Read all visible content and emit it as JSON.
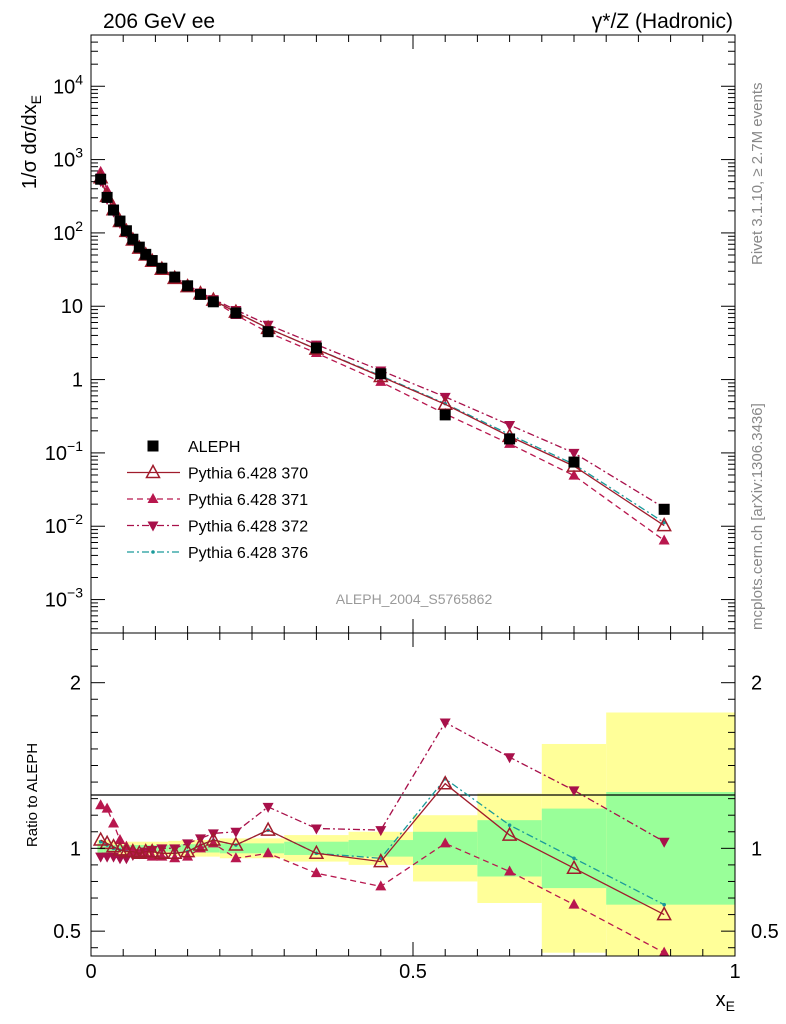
{
  "header": {
    "left_label": "206 GeV ee",
    "right_label": "γ*/Z (Hadronic)"
  },
  "side_text": {
    "rivet": "Rivet 3.1.10, ≥ 2.7M events",
    "mcplots": "mcplots.cern.ch [arXiv:1306.3436]"
  },
  "analysis_label": "ALEPH_2004_S5765862",
  "colors": {
    "data": "#000000",
    "p370": "#a01c2c",
    "p371": "#b8174e",
    "p372": "#a8104a",
    "p376": "#1a9a9a",
    "band_inner": "#99ff99",
    "band_outer": "#ffff99"
  },
  "chart_data": [
    {
      "type": "scatter",
      "panel": "main",
      "ylabel": "1/σ dσ/dx_E",
      "yscale": "log",
      "xlim": [
        0,
        1
      ],
      "ylim": [
        0.00035,
        50000
      ],
      "y_ticks": [
        "10^-3",
        "10^-2",
        "10^-1",
        "1",
        "10",
        "10^2",
        "10^3",
        "10^4"
      ],
      "x": [
        0.015,
        0.025,
        0.035,
        0.045,
        0.055,
        0.065,
        0.075,
        0.085,
        0.095,
        0.11,
        0.13,
        0.15,
        0.17,
        0.19,
        0.225,
        0.275,
        0.35,
        0.45,
        0.55,
        0.65,
        0.75,
        0.89
      ],
      "legend": {
        "placement": "lower-left"
      },
      "series": [
        {
          "name": "ALEPH",
          "marker": "square",
          "values": [
            540,
            305,
            205,
            145,
            107,
            82,
            64,
            51,
            42,
            33,
            25,
            19,
            14.5,
            11.5,
            8.1,
            4.5,
            2.7,
            1.2,
            0.33,
            0.155,
            0.075,
            0.017
          ]
        },
        {
          "name": "Pythia 6.428 370",
          "marker": "triangle-open",
          "values": [
            565,
            315,
            207,
            143,
            105,
            80,
            62,
            50,
            41,
            32,
            24,
            18.5,
            14.8,
            12.1,
            8.3,
            5.0,
            2.6,
            1.1,
            0.46,
            0.168,
            0.066,
            0.0102
          ]
        },
        {
          "name": "Pythia 6.428 371",
          "marker": "triangle-up",
          "values": [
            680,
            380,
            236,
            152,
            108,
            80,
            61,
            49,
            40,
            31,
            23.5,
            18,
            14.6,
            11.9,
            7.6,
            4.4,
            2.3,
            0.93,
            0.34,
            0.133,
            0.049,
            0.0064
          ]
        },
        {
          "name": "Pythia 6.428 372",
          "marker": "triangle-down",
          "values": [
            510,
            290,
            195,
            136,
            101,
            79,
            62,
            50,
            42,
            33,
            25,
            19.5,
            15.4,
            12.5,
            8.9,
            5.6,
            3.0,
            1.33,
            0.58,
            0.24,
            0.1,
            0.0178
          ]
        },
        {
          "name": "Pythia 6.428 376",
          "marker": "dot",
          "values": [
            560,
            312,
            206,
            144,
            106,
            81,
            63,
            50,
            41,
            32,
            24,
            18.6,
            14.8,
            12.1,
            8.3,
            5.0,
            2.6,
            1.13,
            0.47,
            0.178,
            0.07,
            0.0112
          ]
        }
      ]
    },
    {
      "type": "line",
      "panel": "ratio",
      "ylabel": "Ratio to ALEPH",
      "xlabel": "x_E",
      "xlim": [
        0,
        1
      ],
      "ylim": [
        0.35,
        2.3
      ],
      "y_ticks": [
        "0.5",
        "1",
        "2"
      ],
      "x_ticks": [
        "0",
        "0.5",
        "1"
      ],
      "x": [
        0.015,
        0.025,
        0.035,
        0.045,
        0.055,
        0.065,
        0.075,
        0.085,
        0.095,
        0.11,
        0.13,
        0.15,
        0.17,
        0.19,
        0.225,
        0.275,
        0.35,
        0.45,
        0.55,
        0.65,
        0.75,
        0.89
      ],
      "bands": {
        "edges": [
          0.01,
          0.02,
          0.03,
          0.04,
          0.05,
          0.06,
          0.07,
          0.08,
          0.09,
          0.1,
          0.12,
          0.14,
          0.16,
          0.18,
          0.2,
          0.25,
          0.3,
          0.4,
          0.5,
          0.6,
          0.7,
          0.8,
          1.0
        ],
        "inner": [
          0.03,
          0.03,
          0.02,
          0.02,
          0.02,
          0.02,
          0.02,
          0.02,
          0.02,
          0.02,
          0.02,
          0.025,
          0.025,
          0.025,
          0.03,
          0.03,
          0.04,
          0.05,
          0.1,
          0.17,
          0.24,
          0.34
        ],
        "outer": [
          0.05,
          0.05,
          0.04,
          0.04,
          0.04,
          0.04,
          0.04,
          0.04,
          0.04,
          0.04,
          0.045,
          0.05,
          0.05,
          0.05,
          0.06,
          0.06,
          0.08,
          0.1,
          0.2,
          0.33,
          0.63,
          0.82
        ]
      },
      "series": [
        {
          "name": "Pythia 6.428 370",
          "values": [
            1.05,
            1.03,
            1.01,
            0.99,
            0.98,
            0.98,
            0.97,
            0.98,
            0.98,
            0.97,
            0.97,
            0.98,
            1.02,
            1.05,
            1.02,
            1.11,
            0.97,
            0.92,
            1.39,
            1.08,
            0.88,
            0.6
          ]
        },
        {
          "name": "Pythia 6.428 371",
          "values": [
            1.26,
            1.24,
            1.15,
            1.05,
            1.01,
            0.98,
            0.96,
            0.96,
            0.95,
            0.95,
            0.94,
            0.95,
            1.0,
            1.03,
            0.94,
            0.97,
            0.85,
            0.77,
            1.03,
            0.86,
            0.66,
            0.37
          ]
        },
        {
          "name": "Pythia 6.428 372",
          "values": [
            0.95,
            0.95,
            0.95,
            0.94,
            0.94,
            0.96,
            0.97,
            0.98,
            0.99,
            1.0,
            1.0,
            1.03,
            1.06,
            1.09,
            1.1,
            1.25,
            1.12,
            1.11,
            1.76,
            1.55,
            1.35,
            1.04
          ]
        },
        {
          "name": "Pythia 6.428 376",
          "values": [
            1.04,
            1.02,
            1.0,
            0.99,
            0.99,
            0.99,
            0.98,
            0.98,
            0.98,
            0.97,
            0.97,
            0.98,
            1.02,
            1.05,
            1.02,
            1.11,
            0.97,
            0.94,
            1.42,
            1.14,
            0.94,
            0.66
          ]
        }
      ]
    }
  ]
}
